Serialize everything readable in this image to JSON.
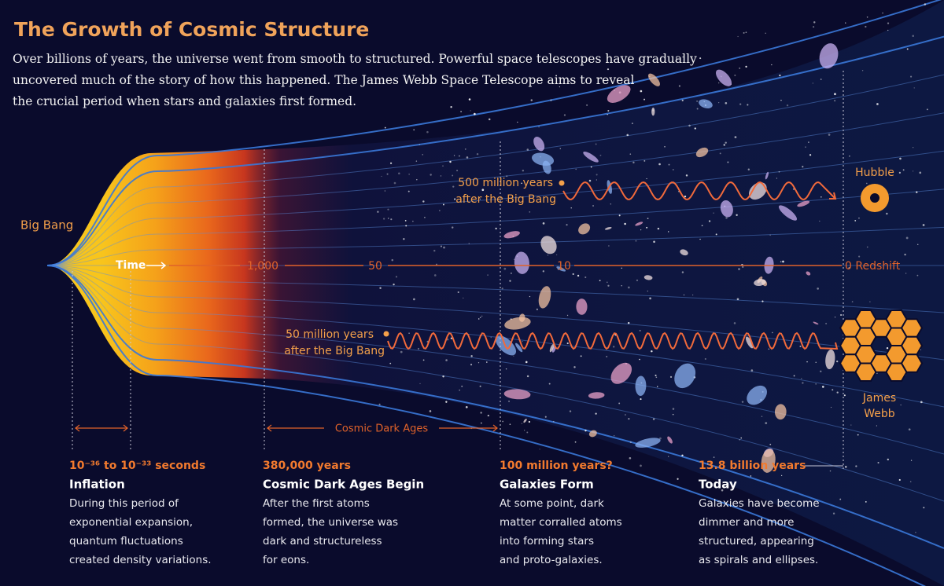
{
  "header": {
    "title": "The Growth of Cosmic Structure",
    "intro": [
      "Over billions of years, the universe went from smooth to structured. Powerful space telescopes have gradually",
      "uncovered much of the story of how this happened. The James Webb Space Telescope aims to reveal",
      "the crucial period when stars and galaxies first formed."
    ]
  },
  "timeline": {
    "origin": "Big Bang",
    "time_label": "Time",
    "redshift_ticks": [
      "1,000",
      "50",
      "10",
      "0 Redshift"
    ],
    "dark_ages_span": "Cosmic Dark Ages"
  },
  "observations": [
    {
      "lines": [
        "500 million years",
        "after the Big Bang"
      ],
      "telescope": [
        "Hubble"
      ]
    },
    {
      "lines": [
        "50 million years",
        "after the Big Bang"
      ],
      "telescope": [
        "James",
        "Webb"
      ]
    }
  ],
  "eras": [
    {
      "time": "10⁻³⁶ to 10⁻³³ seconds",
      "heading": "Inflation",
      "description": [
        "During this period of",
        "exponential expansion,",
        "quantum fluctuations",
        "created density variations."
      ]
    },
    {
      "time": "380,000 years",
      "heading": "Cosmic Dark Ages Begin",
      "description": [
        "After the first atoms",
        "formed, the universe was",
        "dark and structureless",
        "for eons."
      ]
    },
    {
      "time": "100 million years?",
      "heading": "Galaxies Form",
      "description": [
        "At some point, dark",
        "matter corralled atoms",
        "into forming stars",
        "and proto-galaxies."
      ]
    },
    {
      "time": "13.8 billion years",
      "heading": "Today",
      "description": [
        "Galaxies have become",
        "dimmer and more",
        "structured, appearing",
        "as spirals and ellipses."
      ]
    }
  ]
}
